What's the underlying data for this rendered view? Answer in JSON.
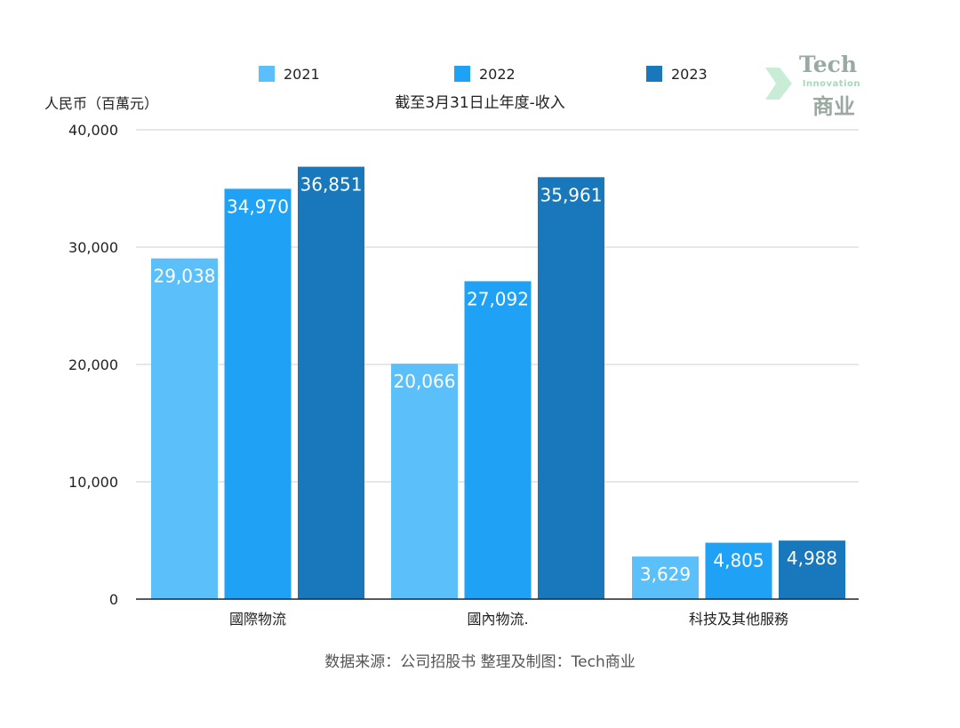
{
  "chart_data": {
    "type": "bar",
    "title": "截至3月31日止年度-收入",
    "ylabel": "人民币（百萬元）",
    "xlabel": "",
    "categories": [
      "國際物流",
      "國內物流.",
      "科技及其他服務"
    ],
    "series": [
      {
        "name": "2021",
        "color": "#5bc0fa",
        "values": [
          29038,
          20066,
          3629
        ],
        "labels": [
          "29,038",
          "20,066",
          "3,629"
        ]
      },
      {
        "name": "2022",
        "color": "#1fa2f6",
        "values": [
          34970,
          27092,
          4805
        ],
        "labels": [
          "34,970",
          "27,092",
          "4,805"
        ]
      },
      {
        "name": "2023",
        "color": "#1878bb",
        "values": [
          36851,
          35961,
          4988
        ],
        "labels": [
          "36,851",
          "35,961",
          "4,988"
        ]
      }
    ],
    "ylim": [
      0,
      40000
    ],
    "yticks": [
      0,
      10000,
      20000,
      30000,
      40000
    ],
    "ytick_labels": [
      "0",
      "10,000",
      "20,000",
      "30,000",
      "40,000"
    ],
    "grid": true,
    "legend_position": "top"
  },
  "source": "数据来源：公司招股书  整理及制图：Tech商业",
  "logo": {
    "line1": "Tech",
    "line2": "Innovation",
    "line3": "商业"
  }
}
